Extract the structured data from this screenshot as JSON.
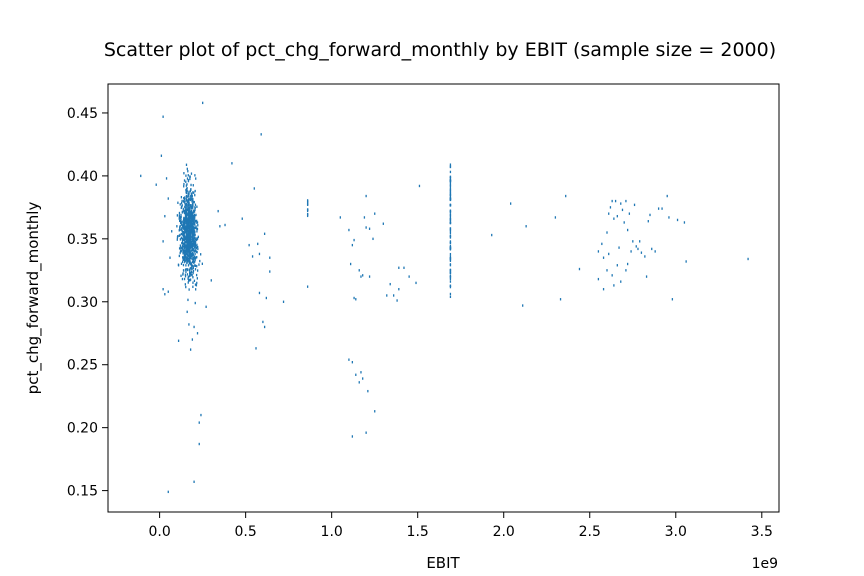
{
  "chart_data": {
    "type": "scatter",
    "title": "Scatter plot of pct_chg_forward_monthly by EBIT (sample size = 2000)",
    "xlabel": "EBIT",
    "ylabel": "pct_chg_forward_monthly",
    "x_offset_label": "1e9",
    "xlim": [
      -0.3,
      3.6
    ],
    "ylim": [
      0.133,
      0.473
    ],
    "xticks": [
      0.0,
      0.5,
      1.0,
      1.5,
      2.0,
      2.5,
      3.0,
      3.5
    ],
    "xtick_labels": [
      "0.0",
      "0.5",
      "1.0",
      "1.5",
      "2.0",
      "2.5",
      "3.0",
      "3.5"
    ],
    "yticks": [
      0.15,
      0.2,
      0.25,
      0.3,
      0.35,
      0.4,
      0.45
    ],
    "ytick_labels": [
      "0.15",
      "0.20",
      "0.25",
      "0.30",
      "0.35",
      "0.40",
      "0.45"
    ],
    "grid": false,
    "legend": "none",
    "marker_color": "#1f77b4",
    "series": [
      {
        "values": [
          [
            0.02,
            0.447
          ],
          [
            0.25,
            0.458
          ],
          [
            0.59,
            0.433
          ],
          [
            -0.11,
            0.4
          ],
          [
            0.42,
            0.41
          ],
          [
            0.01,
            0.416
          ],
          [
            0.04,
            0.398
          ],
          [
            -0.02,
            0.393
          ],
          [
            0.05,
            0.382
          ],
          [
            0.03,
            0.368
          ],
          [
            0.02,
            0.348
          ],
          [
            0.07,
            0.356
          ],
          [
            0.06,
            0.335
          ],
          [
            0.1,
            0.36
          ],
          [
            0.11,
            0.329
          ],
          [
            0.02,
            0.31
          ],
          [
            0.03,
            0.306
          ],
          [
            0.05,
            0.308
          ],
          [
            0.11,
            0.269
          ],
          [
            0.05,
            0.149
          ],
          [
            0.19,
            0.27
          ],
          [
            0.18,
            0.262
          ],
          [
            0.17,
            0.282
          ],
          [
            0.2,
            0.28
          ],
          [
            0.16,
            0.292
          ],
          [
            0.23,
            0.204
          ],
          [
            0.24,
            0.21
          ],
          [
            0.23,
            0.187
          ],
          [
            0.2,
            0.157
          ],
          [
            0.22,
            0.275
          ],
          [
            0.27,
            0.296
          ],
          [
            0.3,
            0.317
          ],
          [
            0.34,
            0.372
          ],
          [
            0.35,
            0.36
          ],
          [
            0.38,
            0.361
          ],
          [
            0.55,
            0.39
          ],
          [
            0.52,
            0.345
          ],
          [
            0.54,
            0.336
          ],
          [
            0.57,
            0.346
          ],
          [
            0.58,
            0.338
          ],
          [
            0.56,
            0.263
          ],
          [
            0.6,
            0.284
          ],
          [
            0.61,
            0.28
          ],
          [
            0.62,
            0.303
          ],
          [
            0.58,
            0.307
          ],
          [
            0.64,
            0.335
          ],
          [
            0.64,
            0.324
          ],
          [
            0.72,
            0.3
          ],
          [
            0.61,
            0.354
          ],
          [
            0.48,
            0.366
          ],
          [
            0.86,
            0.312
          ],
          [
            0.86,
            0.373
          ],
          [
            1.05,
            0.367
          ],
          [
            1.1,
            0.357
          ],
          [
            1.11,
            0.33
          ],
          [
            1.14,
            0.302
          ],
          [
            1.13,
            0.303
          ],
          [
            1.12,
            0.345
          ],
          [
            1.13,
            0.349
          ],
          [
            1.16,
            0.325
          ],
          [
            1.17,
            0.32
          ],
          [
            1.18,
            0.321
          ],
          [
            1.2,
            0.359
          ],
          [
            1.19,
            0.367
          ],
          [
            1.2,
            0.384
          ],
          [
            1.22,
            0.358
          ],
          [
            1.24,
            0.35
          ],
          [
            1.25,
            0.37
          ],
          [
            1.1,
            0.254
          ],
          [
            1.12,
            0.252
          ],
          [
            1.14,
            0.242
          ],
          [
            1.16,
            0.236
          ],
          [
            1.17,
            0.244
          ],
          [
            1.18,
            0.239
          ],
          [
            1.21,
            0.229
          ],
          [
            1.12,
            0.193
          ],
          [
            1.2,
            0.196
          ],
          [
            1.25,
            0.213
          ],
          [
            1.22,
            0.32
          ],
          [
            1.34,
            0.314
          ],
          [
            1.36,
            0.305
          ],
          [
            1.39,
            0.31
          ],
          [
            1.38,
            0.301
          ],
          [
            1.42,
            0.327
          ],
          [
            1.45,
            0.32
          ],
          [
            1.49,
            0.315
          ],
          [
            1.39,
            0.327
          ],
          [
            1.3,
            0.362
          ],
          [
            1.51,
            0.392
          ],
          [
            1.32,
            0.305
          ],
          [
            1.93,
            0.353
          ],
          [
            2.04,
            0.378
          ],
          [
            2.13,
            0.36
          ],
          [
            2.11,
            0.297
          ],
          [
            2.3,
            0.367
          ],
          [
            2.33,
            0.302
          ],
          [
            2.36,
            0.384
          ],
          [
            2.44,
            0.326
          ],
          [
            2.55,
            0.34
          ],
          [
            2.57,
            0.346
          ],
          [
            2.58,
            0.335
          ],
          [
            2.6,
            0.355
          ],
          [
            2.61,
            0.37
          ],
          [
            2.62,
            0.375
          ],
          [
            2.63,
            0.38
          ],
          [
            2.64,
            0.366
          ],
          [
            2.65,
            0.38
          ],
          [
            2.66,
            0.368
          ],
          [
            2.67,
            0.343
          ],
          [
            2.68,
            0.378
          ],
          [
            2.69,
            0.373
          ],
          [
            2.7,
            0.363
          ],
          [
            2.71,
            0.38
          ],
          [
            2.72,
            0.357
          ],
          [
            2.73,
            0.37
          ],
          [
            2.74,
            0.34
          ],
          [
            2.75,
            0.348
          ],
          [
            2.76,
            0.377
          ],
          [
            2.77,
            0.344
          ],
          [
            2.78,
            0.342
          ],
          [
            2.79,
            0.348
          ],
          [
            2.8,
            0.339
          ],
          [
            2.82,
            0.336
          ],
          [
            2.83,
            0.32
          ],
          [
            2.84,
            0.364
          ],
          [
            2.85,
            0.369
          ],
          [
            2.86,
            0.342
          ],
          [
            2.88,
            0.34
          ],
          [
            2.9,
            0.374
          ],
          [
            2.92,
            0.374
          ],
          [
            2.95,
            0.384
          ],
          [
            2.96,
            0.367
          ],
          [
            2.98,
            0.302
          ],
          [
            2.6,
            0.325
          ],
          [
            2.63,
            0.321
          ],
          [
            2.66,
            0.329
          ],
          [
            2.68,
            0.316
          ],
          [
            2.71,
            0.325
          ],
          [
            2.61,
            0.338
          ],
          [
            2.64,
            0.313
          ],
          [
            2.55,
            0.318
          ],
          [
            2.58,
            0.31
          ],
          [
            2.72,
            0.33
          ],
          [
            3.01,
            0.365
          ],
          [
            3.05,
            0.363
          ],
          [
            3.06,
            0.332
          ],
          [
            3.42,
            0.334
          ]
        ],
        "dense_cluster": {
          "x_center": 0.17,
          "x_spread": 0.035,
          "y_center": 0.355,
          "y_spread": 0.025,
          "count": 950
        },
        "vertical_bands": [
          {
            "x": 0.86,
            "y_min": 0.367,
            "y_max": 0.382,
            "count": 12
          },
          {
            "x": 1.69,
            "y_min": 0.318,
            "y_max": 0.411,
            "count": 90
          },
          {
            "x": 1.69,
            "y_min": 0.298,
            "y_max": 0.318,
            "count": 6
          }
        ]
      }
    ]
  }
}
